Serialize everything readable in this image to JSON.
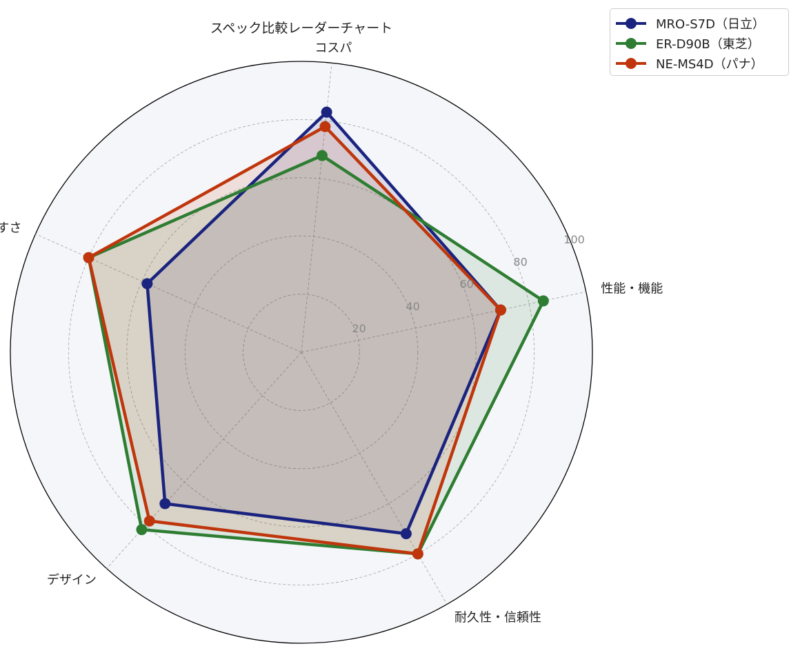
{
  "chart_data": {
    "type": "radar",
    "title": "スペック比較レーダーチャート",
    "categories": [
      "性能・機能",
      "コスパ",
      "使いやすさ",
      "デザイン",
      "耐久性・信頼性"
    ],
    "rlim": [
      0,
      100
    ],
    "rticks": [
      20,
      40,
      60,
      80,
      100
    ],
    "grid": true,
    "legend_position": "top-right",
    "series": [
      {
        "name": "MRO-S7D（日立）",
        "values": [
          70,
          83,
          58,
          70,
          72
        ],
        "color": "#1a237e"
      },
      {
        "name": "ER-D90B（東芝）",
        "values": [
          85,
          68,
          80,
          82,
          80
        ],
        "color": "#2e7d32"
      },
      {
        "name": "NE-MS4D（パナ）",
        "values": [
          70,
          78,
          80,
          78,
          80
        ],
        "color": "#bf360c"
      }
    ]
  }
}
